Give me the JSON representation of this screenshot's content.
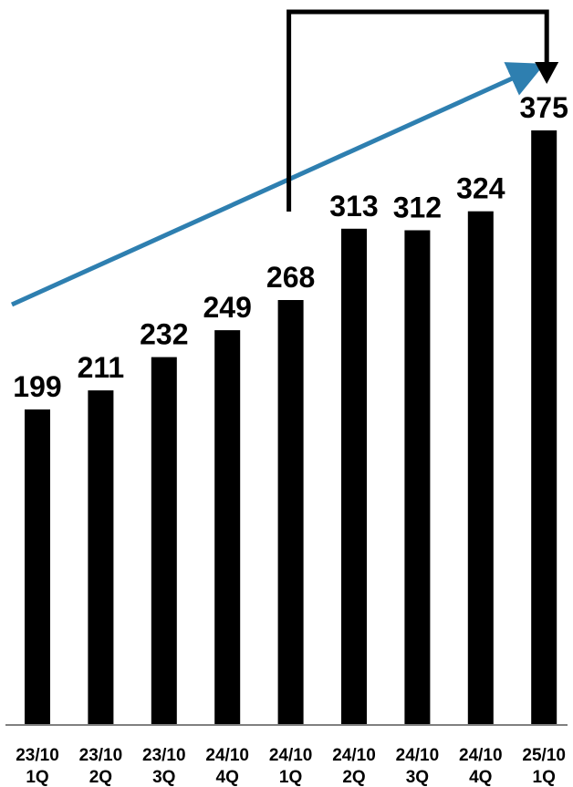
{
  "chart_data": {
    "type": "bar",
    "categories": [
      [
        "23/10",
        "1Q"
      ],
      [
        "23/10",
        "2Q"
      ],
      [
        "23/10",
        "3Q"
      ],
      [
        "24/10",
        "4Q"
      ],
      [
        "24/10",
        "1Q"
      ],
      [
        "24/10",
        "2Q"
      ],
      [
        "24/10",
        "3Q"
      ],
      [
        "24/10",
        "4Q"
      ],
      [
        "25/10",
        "1Q"
      ]
    ],
    "values": [
      199,
      211,
      232,
      249,
      268,
      313,
      312,
      324,
      375
    ],
    "data_labels": [
      "199",
      "211",
      "232",
      "249",
      "268",
      "313",
      "312",
      "324",
      "375"
    ],
    "title": "",
    "xlabel": "",
    "ylabel": "",
    "ylim": [
      0,
      400
    ],
    "grid": false,
    "legend": "none",
    "colors": {
      "bar": "#000000",
      "trend_arrow": "#2e7fb0",
      "bracket_arrow": "#000000"
    },
    "annotations": [
      {
        "type": "trend-arrow",
        "from_category": 0,
        "to_category": 8
      },
      {
        "type": "bracket-arrow",
        "from_category": 4,
        "to_category": 8
      }
    ]
  }
}
